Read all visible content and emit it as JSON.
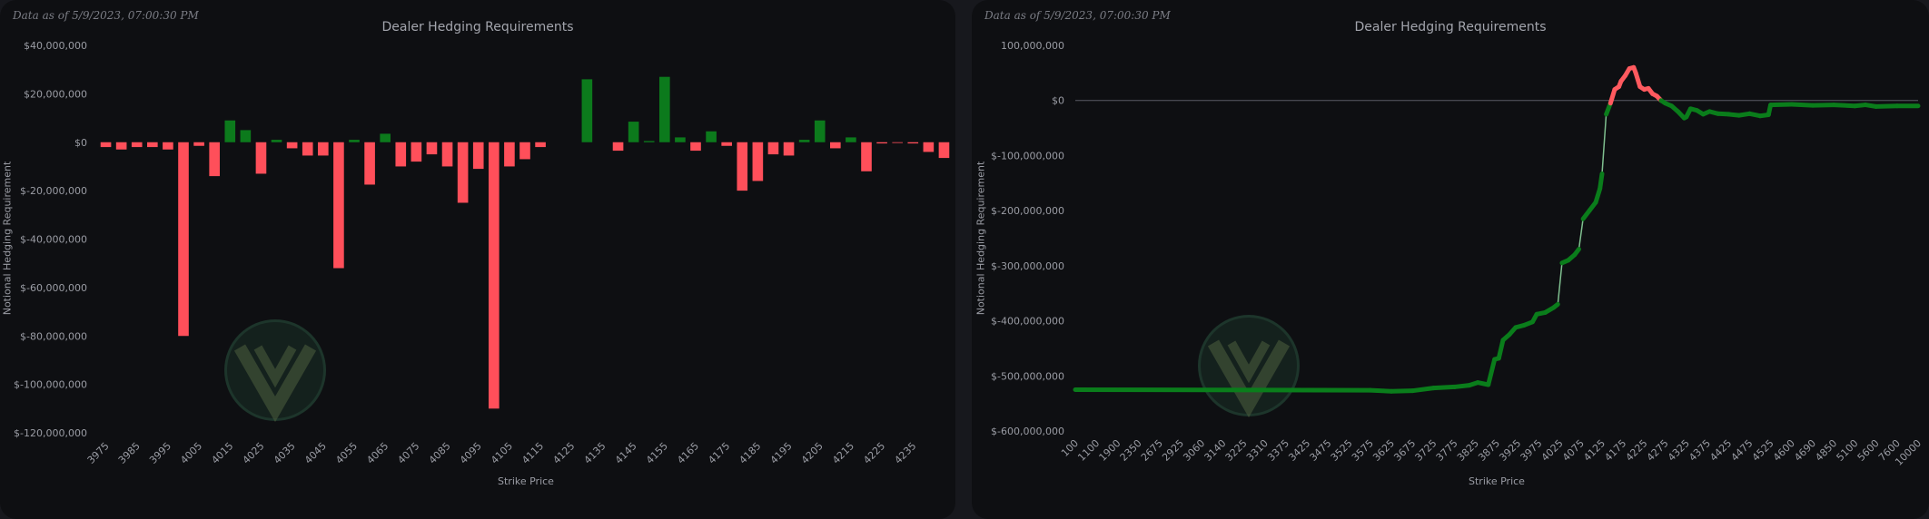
{
  "colors": {
    "positive": "#0c7a1c",
    "negative": "#ff4f5a",
    "line_green": "#0a7d1b",
    "line_red": "#ff5a5f",
    "line_link": "#7fbf8f"
  },
  "left_panel": {
    "stamp": "Data as of 5/9/2023, 07:00:30 PM",
    "logo_icon": "vw-logo-icon"
  },
  "right_panel": {
    "stamp": "Data as of 5/9/2023, 07:00:30 PM",
    "logo_icon": "vw-logo-icon"
  },
  "chart_data": [
    {
      "type": "bar",
      "title": "Dealer Hedging Requirements",
      "xlabel": "Strike Price",
      "ylabel": "Notional Hedging Requirement",
      "ylim": [
        -120000000,
        40000000
      ],
      "yticks": [
        40000000,
        20000000,
        0,
        -20000000,
        -40000000,
        -60000000,
        -80000000,
        -100000000,
        -120000000
      ],
      "ytick_labels": [
        "$40,000,000",
        "$20,000,000",
        "$0",
        "$-20,000,000",
        "$-40,000,000",
        "$-60,000,000",
        "$-80,000,000",
        "$-100,000,000",
        "$-120,000,000"
      ],
      "xtick_labels": [
        "3975",
        "3985",
        "3995",
        "4005",
        "4015",
        "4025",
        "4035",
        "4045",
        "4055",
        "4065",
        "4075",
        "4085",
        "4095",
        "4105",
        "4115",
        "4125",
        "4135",
        "4145",
        "4155",
        "4165",
        "4175",
        "4185",
        "4195",
        "4205",
        "4215",
        "4225",
        "4235"
      ],
      "grid": false,
      "values": [
        -2000000,
        -3000000,
        -2000000,
        -2000000,
        -3000000,
        -80000000,
        -1500000,
        -14000000,
        9000000,
        5000000,
        -13000000,
        1000000,
        -2500000,
        -5500000,
        -5500000,
        -52000000,
        1000000,
        -17500000,
        3500000,
        -10000000,
        -8000000,
        -5000000,
        -10000000,
        -25000000,
        -11000000,
        -110000000,
        -10000000,
        -7000000,
        -2000000,
        0,
        0,
        26000000,
        0,
        -3500000,
        8500000,
        500000,
        27000000,
        2000000,
        -3500000,
        4500000,
        -1500000,
        -20000000,
        -16000000,
        -5000000,
        -5500000,
        1000000,
        9000000,
        -2500000,
        2000000,
        -12000000,
        -500000,
        -300000,
        -500000,
        -4000000,
        -6500000
      ]
    },
    {
      "type": "line",
      "title": "Dealer Hedging Requirements",
      "xlabel": "Strike Price",
      "ylabel": "Notional Hedging Requirement",
      "ylim": [
        -600000000,
        100000000
      ],
      "yticks": [
        100000000,
        0,
        -100000000,
        -200000000,
        -300000000,
        -400000000,
        -500000000,
        -600000000
      ],
      "ytick_labels": [
        "100,000,000",
        "$0",
        "$-100,000,000",
        "$-200,000,000",
        "$-300,000,000",
        "$-400,000,000",
        "$-500,000,000",
        "$-600,000,000"
      ],
      "xtick_labels": [
        "100",
        "1100",
        "1900",
        "2350",
        "2675",
        "2925",
        "3060",
        "3140",
        "3225",
        "3310",
        "3375",
        "3425",
        "3475",
        "3525",
        "3575",
        "3625",
        "3675",
        "3725",
        "3775",
        "3825",
        "3875",
        "3925",
        "3975",
        "4025",
        "4075",
        "4125",
        "4175",
        "4225",
        "4275",
        "4325",
        "4375",
        "4425",
        "4475",
        "4525",
        "4600",
        "4690",
        "4850",
        "5100",
        "5600",
        "7600",
        "10000"
      ],
      "grid": false,
      "points": [
        [
          0,
          -525000000
        ],
        [
          14,
          -526000000
        ],
        [
          15,
          -528000000
        ],
        [
          16,
          -527000000
        ],
        [
          17,
          -522000000
        ],
        [
          18,
          -520000000
        ],
        [
          18.7,
          -517000000
        ],
        [
          19.1,
          -512000000
        ],
        [
          19.6,
          -516000000
        ],
        [
          19.9,
          -470000000
        ],
        [
          20.1,
          -468000000
        ],
        [
          20.3,
          -435000000
        ],
        [
          20.6,
          -425000000
        ],
        [
          20.9,
          -412000000
        ],
        [
          21.3,
          -408000000
        ],
        [
          21.7,
          -402000000
        ],
        [
          21.9,
          -388000000
        ],
        [
          22.3,
          -385000000
        ],
        [
          22.7,
          -376000000
        ],
        [
          22.9,
          -370000000
        ],
        [
          23.1,
          -295000000
        ],
        [
          23.4,
          -290000000
        ],
        [
          23.7,
          -280000000
        ],
        [
          23.9,
          -270000000
        ],
        [
          24.1,
          -215000000
        ],
        [
          24.4,
          -200000000
        ],
        [
          24.7,
          -185000000
        ],
        [
          24.9,
          -160000000
        ],
        [
          25.0,
          -133000000
        ],
        [
          25.2,
          -25000000
        ],
        [
          25.4,
          -5000000
        ],
        [
          25.6,
          20000000
        ],
        [
          25.8,
          25000000
        ],
        [
          25.9,
          35000000
        ],
        [
          26.1,
          45000000
        ],
        [
          26.3,
          58000000
        ],
        [
          26.5,
          60000000
        ],
        [
          26.6,
          50000000
        ],
        [
          26.8,
          25000000
        ],
        [
          27.0,
          20000000
        ],
        [
          27.2,
          22000000
        ],
        [
          27.4,
          12000000
        ],
        [
          27.6,
          8000000
        ],
        [
          27.8,
          0
        ],
        [
          28.0,
          -5000000
        ],
        [
          28.3,
          -10000000
        ],
        [
          28.6,
          -20000000
        ],
        [
          28.9,
          -32000000
        ],
        [
          29.0,
          -30000000
        ],
        [
          29.2,
          -15000000
        ],
        [
          29.5,
          -18000000
        ],
        [
          29.8,
          -25000000
        ],
        [
          30.1,
          -20000000
        ],
        [
          30.5,
          -24000000
        ],
        [
          31.0,
          -25000000
        ],
        [
          31.5,
          -27000000
        ],
        [
          32.0,
          -24000000
        ],
        [
          32.5,
          -28000000
        ],
        [
          32.9,
          -26000000
        ],
        [
          33.0,
          -8000000
        ],
        [
          34,
          -7000000
        ],
        [
          35,
          -9000000
        ],
        [
          36,
          -8000000
        ],
        [
          37,
          -10000000
        ],
        [
          37.5,
          -8000000
        ],
        [
          38,
          -11000000
        ],
        [
          39,
          -10000000
        ],
        [
          40,
          -10000000
        ]
      ]
    }
  ]
}
